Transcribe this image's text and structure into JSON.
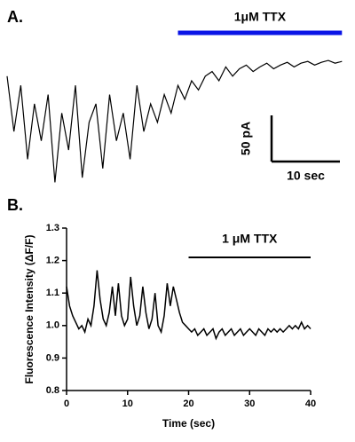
{
  "chart_data": [
    {
      "type": "trace",
      "panel_label": "A.",
      "x": [
        0,
        1,
        2,
        3,
        4,
        5,
        6,
        7,
        8,
        9,
        10,
        11,
        12,
        13,
        14,
        15,
        16,
        17,
        18,
        19,
        20,
        21,
        22,
        23,
        24,
        25,
        26,
        27,
        28,
        29,
        30,
        31,
        32,
        33,
        34,
        35,
        36,
        37,
        38,
        39,
        40,
        41,
        42,
        43,
        44,
        45,
        46,
        47,
        48,
        49
      ],
      "values": [
        -20,
        -80,
        -30,
        -110,
        -50,
        -90,
        -40,
        -135,
        -60,
        -100,
        -30,
        -130,
        -70,
        -50,
        -120,
        -40,
        -90,
        -60,
        -110,
        -30,
        -80,
        -50,
        -70,
        -40,
        -60,
        -30,
        -45,
        -25,
        -35,
        -20,
        -15,
        -25,
        -10,
        -20,
        -12,
        -8,
        -15,
        -10,
        -6,
        -12,
        -8,
        -5,
        -10,
        -6,
        -4,
        -8,
        -5,
        -3,
        -6,
        -4
      ],
      "color": "#000000",
      "scale_y": {
        "value": 50,
        "label": "50 pA"
      },
      "scale_x": {
        "value": 10,
        "label": "10 sec"
      },
      "annotation": {
        "text": "1μM TTX",
        "x_range": [
          25,
          49
        ],
        "color": "#0a14e6"
      }
    },
    {
      "type": "line",
      "panel_label": "B.",
      "xlabel": "Time (sec)",
      "ylabel": "Fluorescence Intensity (ΔF/F)",
      "x": [
        0,
        0.5,
        1,
        1.5,
        2,
        2.5,
        3,
        3.5,
        4,
        4.5,
        5,
        5.5,
        6,
        6.5,
        7,
        7.5,
        8,
        8.5,
        9,
        9.5,
        10,
        10.5,
        11,
        11.5,
        12,
        12.5,
        13,
        13.5,
        14,
        14.5,
        15,
        15.5,
        16,
        16.5,
        17,
        17.5,
        18,
        18.5,
        19,
        19.5,
        20,
        20.5,
        21,
        21.5,
        22,
        22.5,
        23,
        23.5,
        24,
        24.5,
        25,
        25.5,
        26,
        26.5,
        27,
        27.5,
        28,
        28.5,
        29,
        29.5,
        30,
        30.5,
        31,
        31.5,
        32,
        32.5,
        33,
        33.5,
        34,
        34.5,
        35,
        35.5,
        36,
        36.5,
        37,
        37.5,
        38,
        38.5,
        39,
        39.5,
        40
      ],
      "values": [
        1.12,
        1.06,
        1.03,
        1.01,
        0.99,
        1.0,
        0.98,
        1.02,
        1.0,
        1.06,
        1.17,
        1.08,
        1.02,
        1.0,
        1.04,
        1.12,
        1.03,
        1.13,
        1.03,
        1.0,
        1.02,
        1.15,
        1.06,
        1.0,
        1.03,
        1.12,
        1.04,
        0.99,
        1.02,
        1.1,
        1.0,
        0.98,
        1.03,
        1.13,
        1.06,
        1.12,
        1.08,
        1.04,
        1.01,
        1.0,
        0.99,
        0.98,
        0.99,
        0.97,
        0.98,
        0.99,
        0.97,
        0.98,
        0.99,
        0.96,
        0.98,
        0.99,
        0.97,
        0.98,
        0.99,
        0.97,
        0.98,
        0.99,
        0.97,
        0.98,
        0.99,
        0.98,
        0.97,
        0.99,
        0.98,
        0.97,
        0.99,
        0.98,
        0.99,
        0.98,
        0.99,
        0.98,
        0.99,
        1.0,
        0.99,
        1.0,
        0.99,
        1.01,
        0.99,
        1.0,
        0.99
      ],
      "color": "#000000",
      "xlim": [
        0,
        40
      ],
      "xticks": [
        0,
        10,
        20,
        30,
        40
      ],
      "ylim": [
        0.8,
        1.3
      ],
      "yticks": [
        0.8,
        0.9,
        {
          "value": 1,
          "label": "1.0"
        },
        1.1,
        1.2,
        1.3
      ],
      "annotation": {
        "text": "1 μM TTX",
        "x_range": [
          20,
          40
        ],
        "y": 1.21,
        "color": "#000000"
      }
    }
  ]
}
